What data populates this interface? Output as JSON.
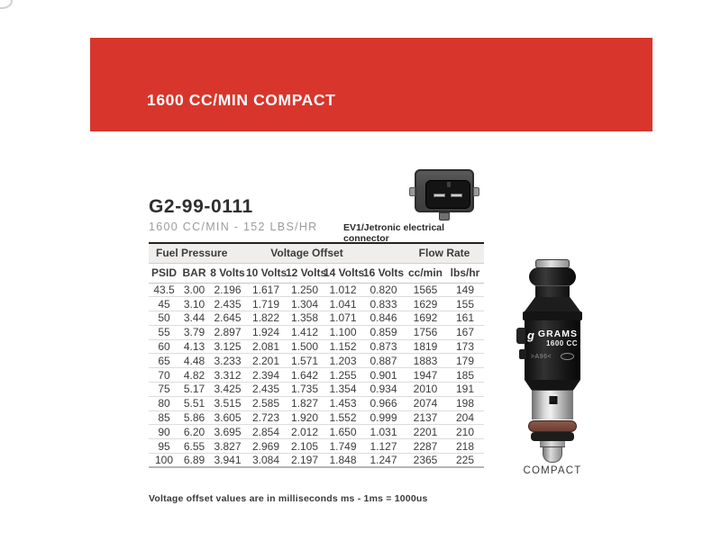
{
  "header": {
    "title": "1600 CC/MIN COMPACT",
    "accent_color": "#d8362c"
  },
  "product": {
    "part_number": "G2-99-0111",
    "subtitle": "1600 CC/MIN - 152 LBS/HR",
    "connector_label": "EV1/Jetronic electrical connector",
    "connector_icon": "ev1-jetronic-connector-icon"
  },
  "table": {
    "group_headers": [
      {
        "label": "Fuel Pressure",
        "colspan": 2
      },
      {
        "label": "Voltage Offset",
        "colspan": 5
      },
      {
        "label": "Flow Rate",
        "colspan": 2
      }
    ],
    "columns": [
      "PSID",
      "BAR",
      "8 Volts",
      "10 Volts",
      "12 Volts",
      "14 Volts",
      "16 Volts",
      "cc/min",
      "lbs/hr"
    ],
    "rows": [
      [
        "43.5",
        "3.00",
        "2.196",
        "1.617",
        "1.250",
        "1.012",
        "0.820",
        "1565",
        "149"
      ],
      [
        "45",
        "3.10",
        "2.435",
        "1.719",
        "1.304",
        "1.041",
        "0.833",
        "1629",
        "155"
      ],
      [
        "50",
        "3.44",
        "2.645",
        "1.822",
        "1.358",
        "1.071",
        "0.846",
        "1692",
        "161"
      ],
      [
        "55",
        "3.79",
        "2.897",
        "1.924",
        "1.412",
        "1.100",
        "0.859",
        "1756",
        "167"
      ],
      [
        "60",
        "4.13",
        "3.125",
        "2.081",
        "1.500",
        "1.152",
        "0.873",
        "1819",
        "173"
      ],
      [
        "65",
        "4.48",
        "3.233",
        "2.201",
        "1.571",
        "1.203",
        "0.887",
        "1883",
        "179"
      ],
      [
        "70",
        "4.82",
        "3.312",
        "2.394",
        "1.642",
        "1.255",
        "0.901",
        "1947",
        "185"
      ],
      [
        "75",
        "5.17",
        "3.425",
        "2.435",
        "1.735",
        "1.354",
        "0.934",
        "2010",
        "191"
      ],
      [
        "80",
        "5.51",
        "3.515",
        "2.585",
        "1.827",
        "1.453",
        "0.966",
        "2074",
        "198"
      ],
      [
        "85",
        "5.86",
        "3.605",
        "2.723",
        "1.920",
        "1.552",
        "0.999",
        "2137",
        "204"
      ],
      [
        "90",
        "6.20",
        "3.695",
        "2.854",
        "2.012",
        "1.650",
        "1.031",
        "2201",
        "210"
      ],
      [
        "95",
        "6.55",
        "3.827",
        "2.969",
        "2.105",
        "1.749",
        "1.127",
        "2287",
        "218"
      ],
      [
        "100",
        "6.89",
        "3.941",
        "3.084",
        "2.197",
        "1.848",
        "1.247",
        "2365",
        "225"
      ]
    ]
  },
  "footnote": "Voltage offset values are in milliseconds ms - 1ms = 1000us",
  "injector": {
    "brand": "GRAMS",
    "model": "1600 CC",
    "logo_glyph": "g",
    "side_marking": ">A96<",
    "caption": "COMPACT"
  }
}
